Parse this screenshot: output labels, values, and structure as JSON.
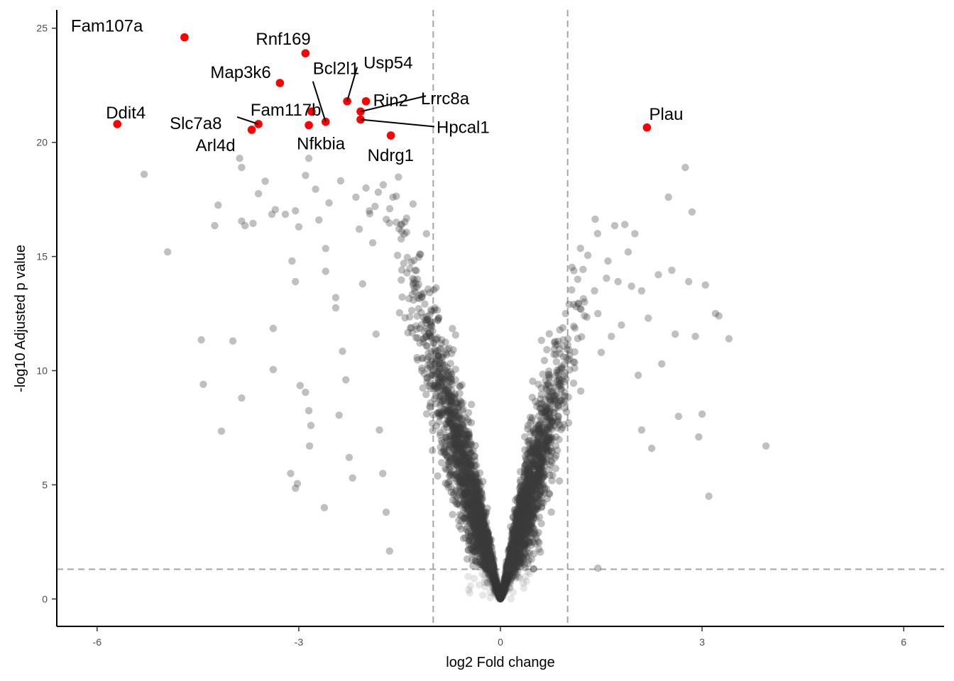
{
  "chart_data": {
    "type": "scatter",
    "title": "",
    "xlabel": "log2 Fold change",
    "ylabel": "-log10 Adjusted p value",
    "xlim": [
      -6.6,
      6.6
    ],
    "ylim": [
      -1.2,
      25.8
    ],
    "x_ticks": [
      -6,
      -3,
      0,
      3,
      6
    ],
    "y_ticks": [
      0,
      5,
      10,
      15,
      20,
      25
    ],
    "x_tick_labels": [
      "-6",
      "-3",
      "0",
      "3",
      "6"
    ],
    "y_tick_labels": [
      "0",
      "5",
      "10",
      "15",
      "20",
      "25"
    ],
    "thresholds": {
      "log2fc": [
        -1,
        1
      ],
      "neg_log10_padj": 1.3
    },
    "grid": false,
    "legend": "none",
    "colors": {
      "background_points": "#3c3c3c",
      "highlight_points": "#ff0000",
      "threshold_lines": "#a6a6a6",
      "axis": "#000000"
    },
    "highlighted_genes": [
      {
        "label": "Fam107a",
        "x": -4.7,
        "y": 24.6
      },
      {
        "label": "Rnf169",
        "x": -2.9,
        "y": 23.9
      },
      {
        "label": "Map3k6",
        "x": -3.28,
        "y": 22.6
      },
      {
        "label": "Bcl2l1",
        "x": -2.6,
        "y": 20.9
      },
      {
        "label": "Usp54",
        "x": -2.28,
        "y": 21.8
      },
      {
        "label": "Fam117b",
        "x": -2.81,
        "y": 21.35
      },
      {
        "label": "Rin2",
        "x": -2.0,
        "y": 21.8
      },
      {
        "label": "Lrrc8a",
        "x": -2.08,
        "y": 21.35
      },
      {
        "label": "Hpcal1",
        "x": -2.08,
        "y": 21.0
      },
      {
        "label": "Ddit4",
        "x": -5.7,
        "y": 20.8
      },
      {
        "label": "Slc7a8",
        "x": -3.6,
        "y": 20.8
      },
      {
        "label": "Arl4d",
        "x": -3.7,
        "y": 20.55
      },
      {
        "label": "Nfkbia",
        "x": -2.85,
        "y": 20.75
      },
      {
        "label": "Ndrg1",
        "x": -1.63,
        "y": 20.3
      },
      {
        "label": "Plau",
        "x": 2.18,
        "y": 20.65
      }
    ],
    "background_points": [
      [
        -5.3,
        18.6
      ],
      [
        -4.95,
        15.2
      ],
      [
        -4.45,
        11.35
      ],
      [
        -4.42,
        9.4
      ],
      [
        -4.2,
        17.25
      ],
      [
        -4.25,
        16.35
      ],
      [
        -4.15,
        7.35
      ],
      [
        -3.98,
        11.3
      ],
      [
        -3.88,
        19.3
      ],
      [
        -3.85,
        18.9
      ],
      [
        -3.85,
        16.55
      ],
      [
        -3.8,
        16.35
      ],
      [
        -3.85,
        8.8
      ],
      [
        -3.68,
        16.45
      ],
      [
        -3.6,
        17.75
      ],
      [
        -3.5,
        18.3
      ],
      [
        -3.38,
        11.85
      ],
      [
        -3.38,
        10.05
      ],
      [
        -3.4,
        16.85
      ],
      [
        -3.35,
        17.05
      ],
      [
        -3.2,
        16.85
      ],
      [
        -3.1,
        14.8
      ],
      [
        -3.05,
        13.9
      ],
      [
        -3.12,
        5.5
      ],
      [
        -3.05,
        4.85
      ],
      [
        -3.02,
        5.05
      ],
      [
        -3.05,
        17.0
      ],
      [
        -3.0,
        16.3
      ],
      [
        -2.98,
        9.35
      ],
      [
        -2.9,
        9.05
      ],
      [
        -2.85,
        8.25
      ],
      [
        -2.82,
        7.6
      ],
      [
        -2.84,
        6.7
      ],
      [
        -2.85,
        19.3
      ],
      [
        -2.9,
        18.55
      ],
      [
        -2.75,
        17.95
      ],
      [
        -2.7,
        16.6
      ],
      [
        -2.6,
        15.35
      ],
      [
        -2.6,
        14.35
      ],
      [
        -2.62,
        4.0
      ],
      [
        -2.55,
        17.35
      ],
      [
        -2.45,
        13.2
      ],
      [
        -2.45,
        12.75
      ],
      [
        -2.4,
        8.05
      ],
      [
        -2.35,
        10.85
      ],
      [
        -2.3,
        9.6
      ],
      [
        -2.25,
        6.2
      ],
      [
        -2.2,
        5.3
      ],
      [
        -2.15,
        17.6
      ],
      [
        -2.1,
        16.2
      ],
      [
        -2.05,
        13.8
      ],
      [
        -2.0,
        18.0
      ],
      [
        -1.95,
        17.0
      ],
      [
        -1.9,
        15.6
      ],
      [
        -1.85,
        11.6
      ],
      [
        -1.8,
        7.4
      ],
      [
        -1.75,
        5.5
      ],
      [
        -1.7,
        3.8
      ],
      [
        -1.65,
        2.1
      ],
      [
        -1.6,
        17.6
      ],
      [
        -1.55,
        16.5
      ],
      [
        -1.3,
        17.3
      ],
      [
        -1.2,
        15.1
      ],
      [
        -1.1,
        16.0
      ],
      [
        1.15,
        14.0
      ],
      [
        1.25,
        12.4
      ],
      [
        1.3,
        15.05
      ],
      [
        1.4,
        13.5
      ],
      [
        1.45,
        12.5
      ],
      [
        1.5,
        10.8
      ],
      [
        1.6,
        14.8
      ],
      [
        1.65,
        11.5
      ],
      [
        1.7,
        16.35
      ],
      [
        1.75,
        13.9
      ],
      [
        1.8,
        12.0
      ],
      [
        1.85,
        16.4
      ],
      [
        1.9,
        15.2
      ],
      [
        1.95,
        13.7
      ],
      [
        2.0,
        16.0
      ],
      [
        2.05,
        9.8
      ],
      [
        2.1,
        13.5
      ],
      [
        2.1,
        7.4
      ],
      [
        2.2,
        12.3
      ],
      [
        2.25,
        6.6
      ],
      [
        2.35,
        14.2
      ],
      [
        2.4,
        10.3
      ],
      [
        2.5,
        17.6
      ],
      [
        2.55,
        14.4
      ],
      [
        2.6,
        11.6
      ],
      [
        2.65,
        8.0
      ],
      [
        2.75,
        18.9
      ],
      [
        2.8,
        13.9
      ],
      [
        2.85,
        16.95
      ],
      [
        2.9,
        11.5
      ],
      [
        2.95,
        7.1
      ],
      [
        3.0,
        8.1
      ],
      [
        3.05,
        13.75
      ],
      [
        3.1,
        4.5
      ],
      [
        3.2,
        12.5
      ],
      [
        3.25,
        12.4
      ],
      [
        3.4,
        11.4
      ],
      [
        3.95,
        6.7
      ],
      [
        1.45,
        1.35
      ],
      [
        -0.3,
        1.5
      ],
      [
        0.3,
        1.4
      ]
    ],
    "background_generator": {
      "total_points": 4200,
      "seed": 7,
      "model": "volcano: y proportional to |log2FC| with noise, denser near origin"
    }
  }
}
